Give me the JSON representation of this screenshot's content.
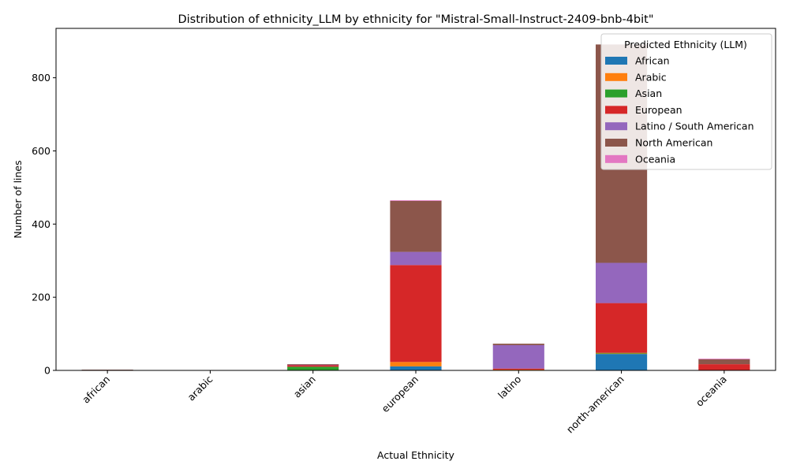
{
  "chart_data": {
    "type": "bar",
    "stacked": true,
    "title": "Distribution of ethnicity_LLM by ethnicity for \"Mistral-Small-Instruct-2409-bnb-4bit\"",
    "xlabel": "Actual Ethnicity",
    "ylabel": "Number of lines",
    "ylim": [
      0,
      935
    ],
    "yticks": [
      0,
      200,
      400,
      600,
      800
    ],
    "grid": false,
    "legend_title": "Predicted Ethnicity (LLM)",
    "legend_position": "top-right",
    "categories": [
      "african",
      "arabic",
      "asian",
      "european",
      "latino",
      "north-american",
      "oceania"
    ],
    "series": [
      {
        "name": "African",
        "color": "#1f77b4",
        "values": [
          0,
          0,
          1,
          11,
          0,
          45,
          0
        ]
      },
      {
        "name": "Arabic",
        "color": "#ff7f0e",
        "values": [
          1,
          0,
          0,
          12,
          2,
          2,
          0
        ]
      },
      {
        "name": "Asian",
        "color": "#2ca02c",
        "values": [
          0,
          0,
          9,
          0,
          0,
          1,
          0
        ]
      },
      {
        "name": "European",
        "color": "#d62728",
        "values": [
          0,
          0,
          5,
          265,
          3,
          136,
          17
        ]
      },
      {
        "name": "Latino / South American",
        "color": "#9467bd",
        "values": [
          0,
          0,
          1,
          36,
          64,
          110,
          0
        ]
      },
      {
        "name": "North American",
        "color": "#8c564b",
        "values": [
          1,
          1,
          1,
          140,
          4,
          597,
          14
        ]
      },
      {
        "name": "Oceania",
        "color": "#e377c2",
        "values": [
          0,
          0,
          0,
          1,
          0,
          0,
          1
        ]
      }
    ]
  }
}
